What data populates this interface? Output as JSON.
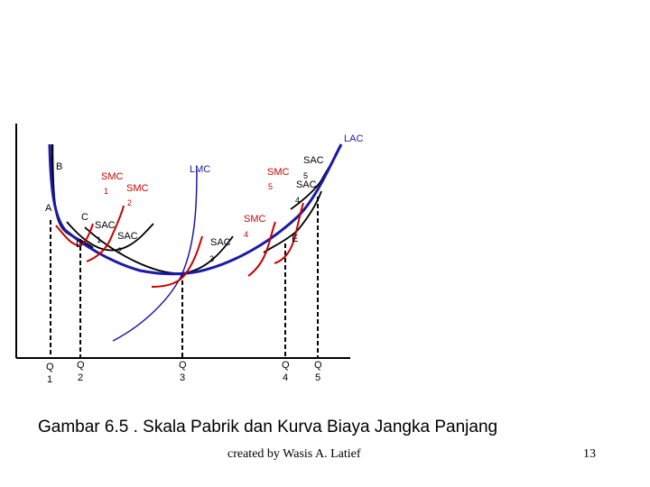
{
  "diagram": {
    "curves": {
      "lac": "LAC",
      "lmc": "LMC",
      "sac_top": "SAC",
      "sac_top_sub": "5",
      "sac_lower": "SAC",
      "sac_lower_sub": "4",
      "smc1": "SMC",
      "smc1_sub": "1",
      "smc2": "SMC",
      "smc2_sub": "2",
      "smc5": "SMC",
      "smc5_sub": "5",
      "smc4": "SMC",
      "smc4_sub": "4",
      "sac1": "SAC",
      "sac1_sub": "1",
      "sac2": "SAC",
      "sac2_sub": "2",
      "sac3": "SAC",
      "sac3_sub": "3"
    },
    "points": {
      "b": "B",
      "a": "A",
      "c": "C",
      "d": "D",
      "e": "E"
    },
    "q_labels": [
      {
        "q": "Q",
        "sub": "1"
      },
      {
        "q": "Q",
        "sub": "2"
      },
      {
        "q": "Q",
        "sub": "3"
      },
      {
        "q": "Q",
        "sub": "4"
      },
      {
        "q": "Q",
        "sub": "5"
      }
    ],
    "colors": {
      "lac": "#1a1aa8",
      "smc": "#cc0000",
      "sac": "#000000"
    }
  },
  "caption": "Gambar 6.5 . Skala Pabrik dan Kurva Biaya Jangka Panjang",
  "credit": "created by Wasis A. Latief",
  "page_number": "13"
}
